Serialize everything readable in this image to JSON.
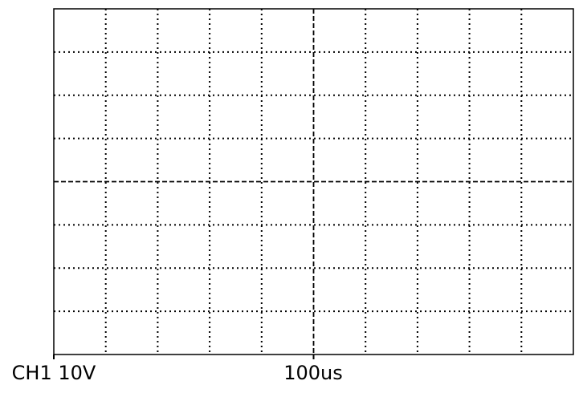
{
  "chart_data": {
    "type": "line",
    "title": "",
    "xlabel": "",
    "ylabel": "",
    "x_divisions": 10,
    "y_divisions": 8,
    "grid": true,
    "grid_style": "dotted",
    "center_lines_style": "dashed",
    "series": [],
    "annotations": {
      "channel_scale": "CH1 10V",
      "timebase": "100us"
    }
  },
  "colors": {
    "background": "#ffffff",
    "grid": "#000000",
    "text": "#000000"
  }
}
